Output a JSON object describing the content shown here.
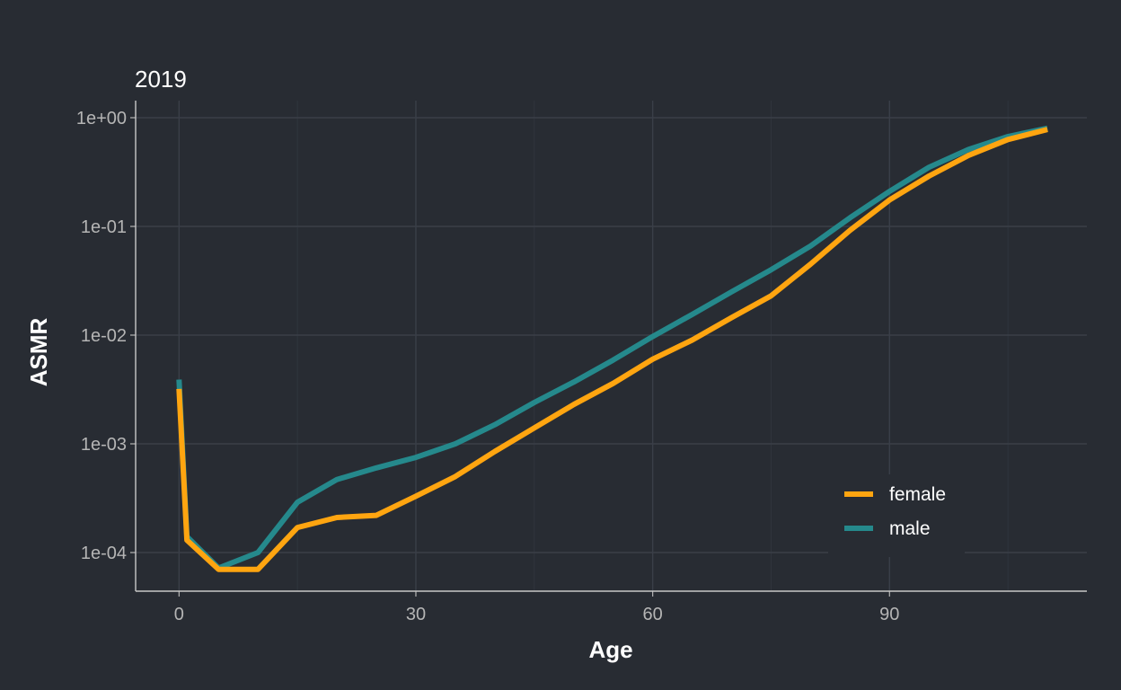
{
  "chart_data": {
    "type": "line",
    "title": "2019",
    "xlabel": "Age",
    "ylabel": "ASMR",
    "y_scale": "log10",
    "x_ticks": [
      0,
      30,
      60,
      90
    ],
    "y_ticks": [
      0.0001,
      0.001,
      0.01,
      0.1,
      1
    ],
    "y_tick_labels": [
      "1e-04",
      "1e-03",
      "1e-02",
      "1e-01",
      "1e+00"
    ],
    "x_range": [
      -5.5,
      115
    ],
    "y_range": [
      7e-05,
      1.0
    ],
    "grid": true,
    "legend_position": "bottom-right",
    "series": [
      {
        "name": "female",
        "color": "#ffa510",
        "points": [
          [
            0,
            0.0032
          ],
          [
            1,
            0.00013
          ],
          [
            5,
            7e-05
          ],
          [
            10,
            7e-05
          ],
          [
            15,
            0.00017
          ],
          [
            20,
            0.00021
          ],
          [
            25,
            0.00022
          ],
          [
            30,
            0.00033
          ],
          [
            35,
            0.0005
          ],
          [
            40,
            0.00085
          ],
          [
            45,
            0.0014
          ],
          [
            50,
            0.0023
          ],
          [
            55,
            0.0036
          ],
          [
            60,
            0.006
          ],
          [
            65,
            0.009
          ],
          [
            70,
            0.0145
          ],
          [
            75,
            0.023
          ],
          [
            80,
            0.045
          ],
          [
            85,
            0.092
          ],
          [
            90,
            0.175
          ],
          [
            95,
            0.29
          ],
          [
            100,
            0.45
          ],
          [
            105,
            0.63
          ],
          [
            110,
            0.78
          ]
        ]
      },
      {
        "name": "male",
        "color": "#25898c",
        "points": [
          [
            0,
            0.0039
          ],
          [
            1,
            0.00014
          ],
          [
            5,
            7.2e-05
          ],
          [
            10,
            0.0001
          ],
          [
            15,
            0.00029
          ],
          [
            20,
            0.00047
          ],
          [
            25,
            0.0006
          ],
          [
            30,
            0.00075
          ],
          [
            35,
            0.001
          ],
          [
            40,
            0.0015
          ],
          [
            45,
            0.0024
          ],
          [
            50,
            0.0037
          ],
          [
            55,
            0.0059
          ],
          [
            60,
            0.0097
          ],
          [
            65,
            0.0155
          ],
          [
            70,
            0.025
          ],
          [
            75,
            0.04
          ],
          [
            80,
            0.066
          ],
          [
            85,
            0.12
          ],
          [
            90,
            0.21
          ],
          [
            95,
            0.35
          ],
          [
            100,
            0.51
          ],
          [
            105,
            0.67
          ],
          [
            110,
            0.8
          ]
        ]
      }
    ]
  }
}
